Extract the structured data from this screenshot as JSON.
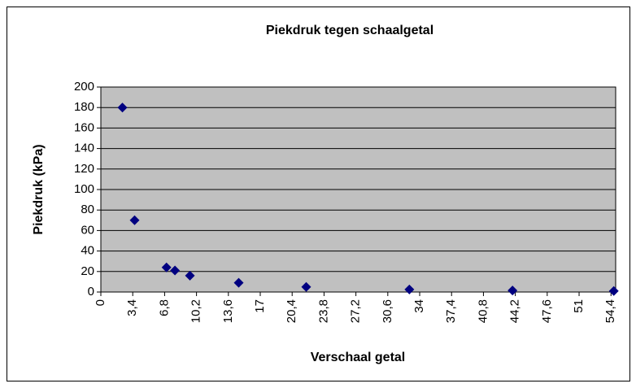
{
  "chart_data": {
    "type": "scatter",
    "title": "Piekdruk tegen schaalgetal",
    "x_label": "Verschaal getal",
    "y_label": "Piekdruk (kPa)",
    "series": [
      {
        "name": "Piekdruk",
        "color": "#000080",
        "x": [
          2.3,
          3.6,
          7.0,
          7.9,
          9.5,
          14.7,
          21.9,
          32.9,
          43.9,
          54.7
        ],
        "values": [
          180,
          70,
          24,
          21,
          16,
          9,
          5,
          2.5,
          1.5,
          1
        ]
      }
    ],
    "xlim": [
      0,
      54.9
    ],
    "xticks": [
      0,
      {
        "value": 3.4,
        "label": "3,4"
      },
      {
        "value": 6.8,
        "label": "6,8"
      },
      {
        "value": 10.2,
        "label": "10,2"
      },
      {
        "value": 13.6,
        "label": "13,6"
      },
      17,
      {
        "value": 20.4,
        "label": "20,4"
      },
      {
        "value": 23.8,
        "label": "23,8"
      },
      {
        "value": 27.2,
        "label": "27,2"
      },
      {
        "value": 30.6,
        "label": "30,6"
      },
      34,
      {
        "value": 37.4,
        "label": "37,4"
      },
      {
        "value": 40.8,
        "label": "40,8"
      },
      {
        "value": 44.2,
        "label": "44,2"
      },
      {
        "value": 47.6,
        "label": "47,6"
      },
      51,
      {
        "value": 54.4,
        "label": "54,4"
      }
    ],
    "ylim": [
      0,
      200
    ],
    "yticks": [
      0,
      20,
      40,
      60,
      80,
      100,
      120,
      140,
      160,
      180,
      200
    ],
    "grid": true,
    "plot_background": "#c0c0c0"
  }
}
